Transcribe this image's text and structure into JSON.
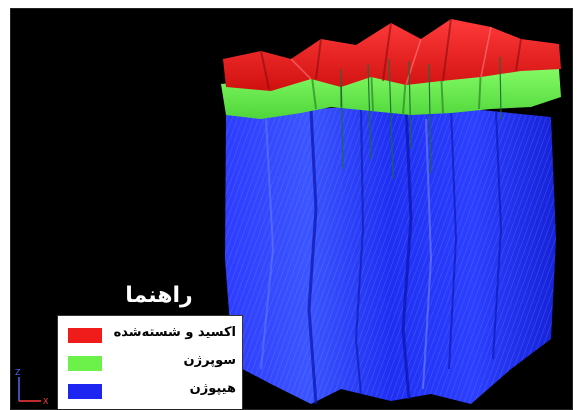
{
  "viewport": {
    "legend": {
      "title": "راهنما",
      "items": [
        {
          "label": "اکسید و شسته‌شده",
          "color": "#f01c1c"
        },
        {
          "label": "سوپرژن",
          "color": "#6cf04a"
        },
        {
          "label": "هیپوژن",
          "color": "#1c26f0"
        }
      ]
    },
    "axes": {
      "z_label": "Z",
      "x_label": "X"
    },
    "colors": {
      "background": "#000000",
      "oxide": "#f01c1c",
      "supergene": "#6cf04a",
      "hypogene": "#1c26f0"
    }
  }
}
